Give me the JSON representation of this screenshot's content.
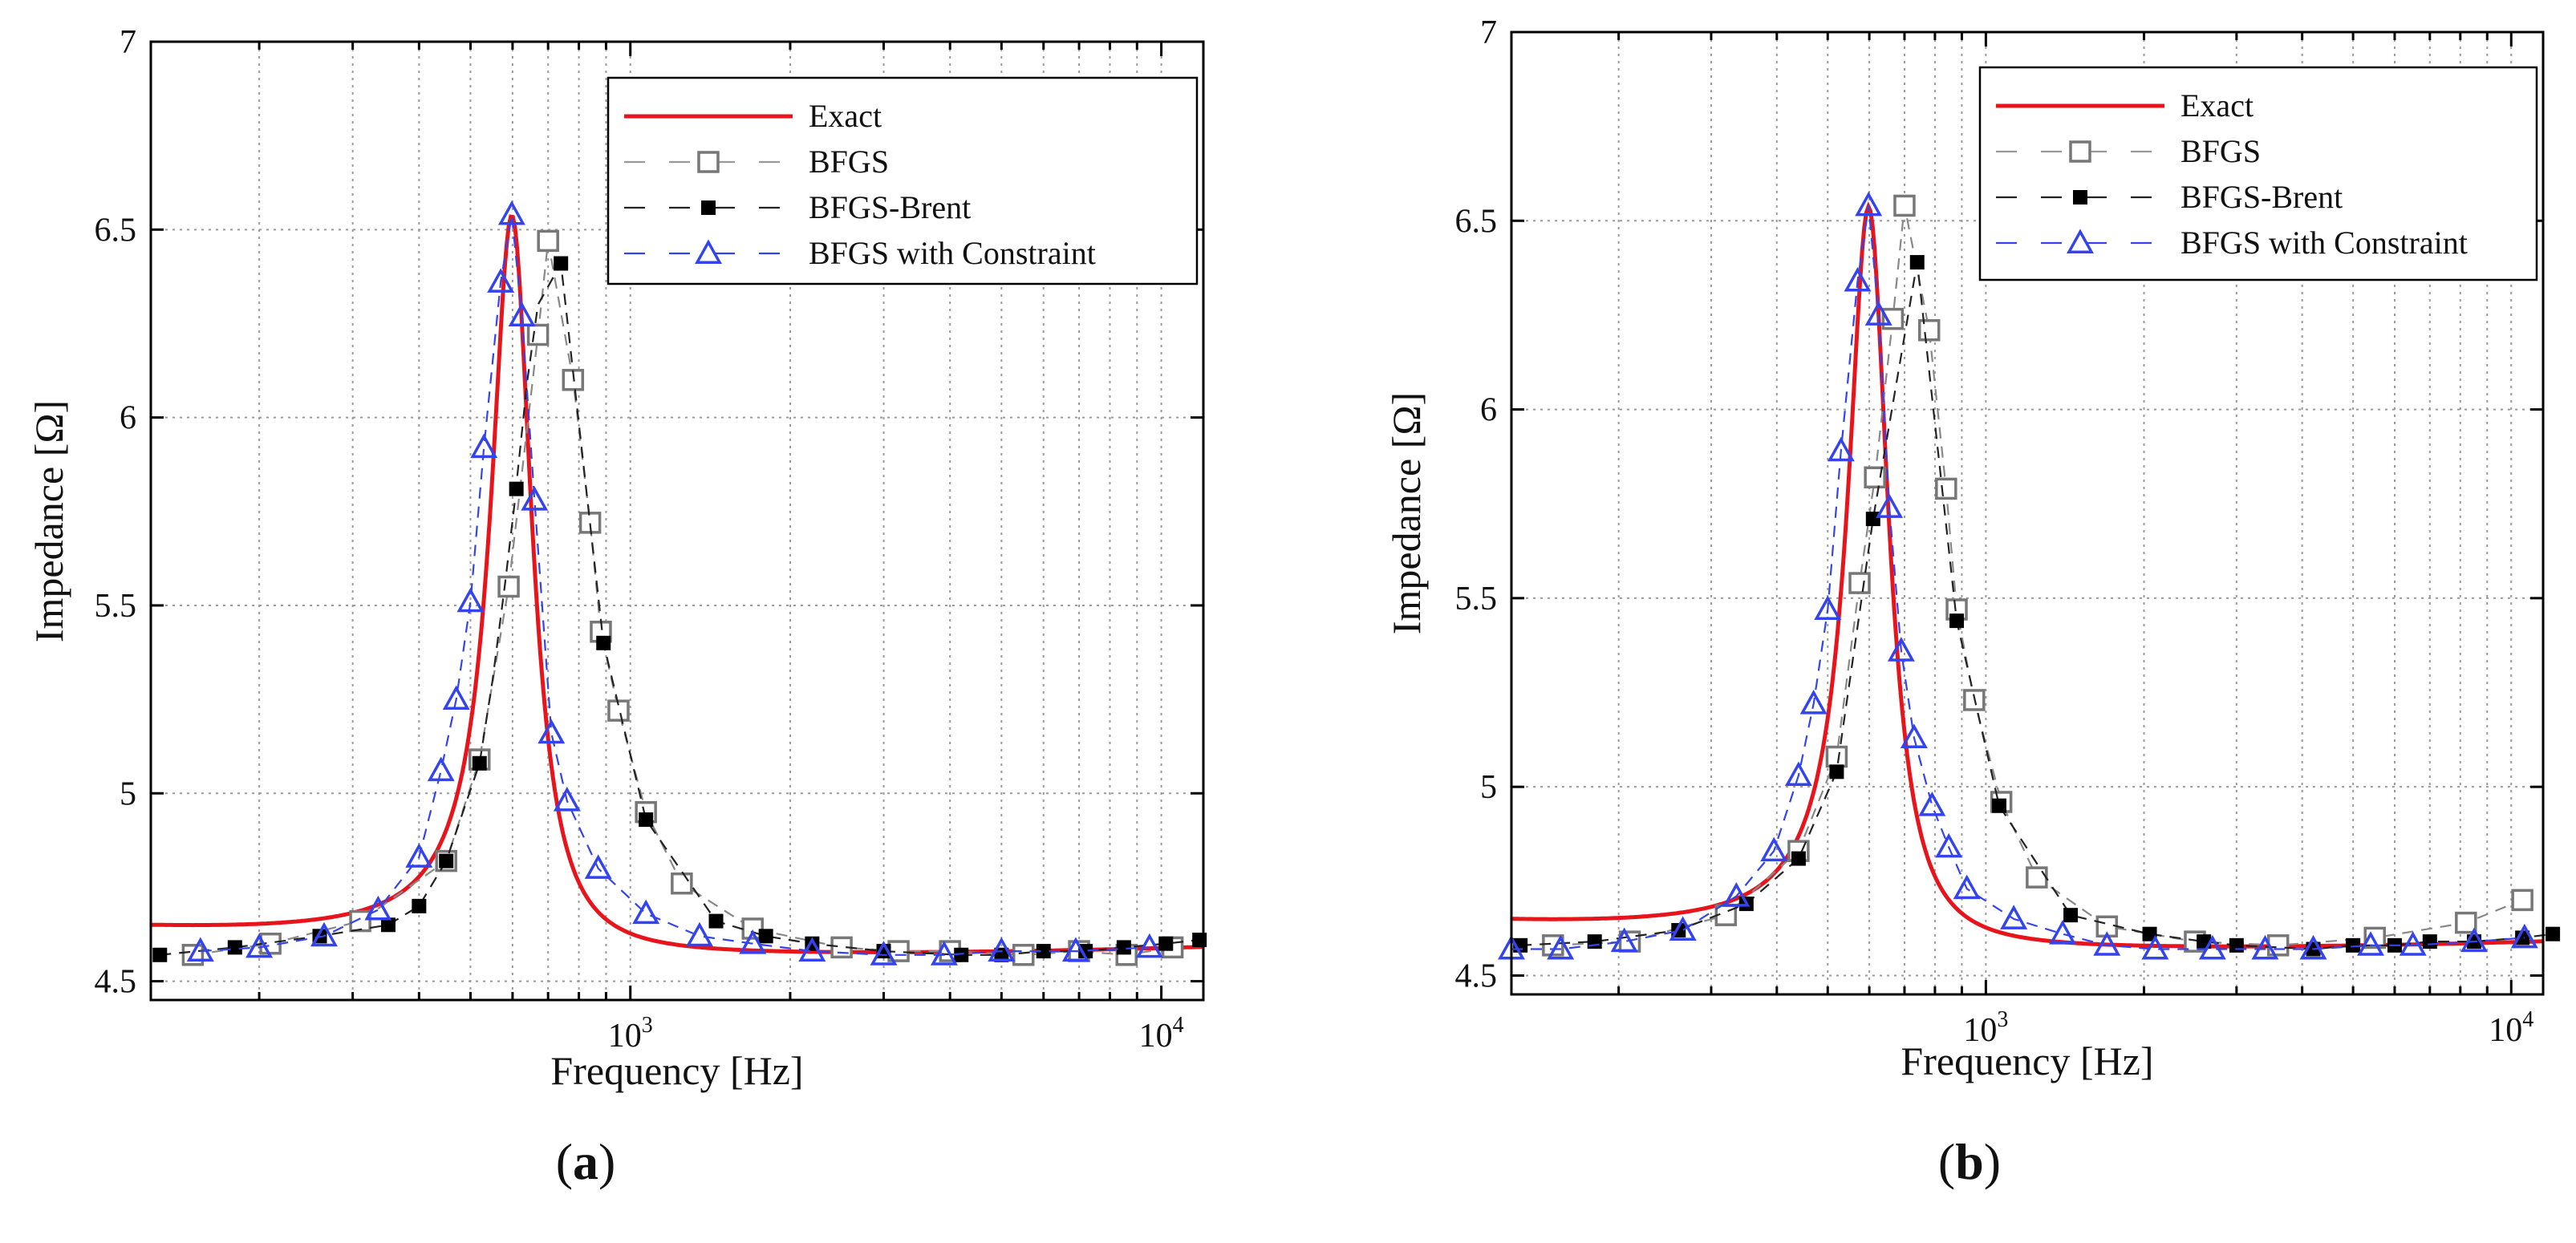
{
  "chart_data": [
    {
      "type": "line",
      "panel_label": "(a)",
      "panel_label_parts": {
        "open": "(",
        "letter": "a",
        "close": ")"
      },
      "xlabel": "Frequency [Hz]",
      "ylabel": "Impedance [Ω]",
      "xscale": "log",
      "xlim": [
        125,
        12000
      ],
      "ylim": [
        4.45,
        7.0
      ],
      "yticks": [
        4.5,
        5,
        5.5,
        6,
        6.5,
        7
      ],
      "ytick_labels": [
        "4.5",
        "5",
        "5.5",
        "6",
        "6.5",
        "7"
      ],
      "xtick_labels": [
        {
          "base": "10",
          "exp": "3"
        },
        {
          "base": "10",
          "exp": "4"
        }
      ],
      "grid": true,
      "legend_position": "top-right",
      "colors": {
        "exact": "#e8141c",
        "bfgs": "#808080",
        "brent": "#000000",
        "constraint": "#3344ee"
      },
      "series": [
        {
          "name": "Exact",
          "style": "line",
          "peak_freq": 598,
          "peak_value": 6.53,
          "base_value": 4.575,
          "half_width": 65
        },
        {
          "name": "BFGS",
          "style": "dashed-open-square",
          "x": [
            150,
            210,
            310,
            450,
            520,
            590,
            670,
            700,
            780,
            840,
            880,
            950,
            1070,
            1250,
            1700,
            2500,
            3200,
            4000,
            5500,
            7000,
            8600,
            10500
          ],
          "y": [
            4.57,
            4.6,
            4.66,
            4.82,
            5.09,
            5.55,
            6.22,
            6.47,
            6.1,
            5.72,
            5.43,
            5.22,
            4.95,
            4.76,
            4.64,
            4.59,
            4.58,
            4.58,
            4.57,
            4.58,
            4.57,
            4.59
          ]
        },
        {
          "name": "BFGS-Brent",
          "style": "dashed-filled-square",
          "x": [
            130,
            180,
            260,
            350,
            400,
            450,
            520,
            610,
            740,
            890,
            1070,
            1450,
            1800,
            2200,
            3000,
            4200,
            5000,
            6000,
            7200,
            8500,
            10200,
            11800
          ],
          "y": [
            4.57,
            4.59,
            4.62,
            4.65,
            4.7,
            4.82,
            5.08,
            5.81,
            6.41,
            5.4,
            4.93,
            4.66,
            4.62,
            4.6,
            4.58,
            4.57,
            4.57,
            4.58,
            4.58,
            4.59,
            4.6,
            4.61
          ],
          "mid_x": [
            550,
            580,
            610,
            640,
            670
          ],
          "mid_y": [
            5.3,
            5.55,
            5.82,
            6.1,
            6.3
          ]
        },
        {
          "name": "BFGS with Constraint",
          "style": "dashed-open-triangle",
          "x": [
            155,
            200,
            265,
            335,
            400,
            440,
            470,
            500,
            530,
            570,
            598,
            625,
            660,
            710,
            760,
            870,
            1070,
            1350,
            1700,
            2200,
            3000,
            3900,
            5000,
            6900,
            9500
          ],
          "y": [
            4.58,
            4.59,
            4.62,
            4.69,
            4.83,
            5.06,
            5.25,
            5.51,
            5.92,
            6.36,
            6.54,
            6.27,
            5.78,
            5.16,
            4.98,
            4.8,
            4.68,
            4.62,
            4.6,
            4.58,
            4.57,
            4.57,
            4.58,
            4.58,
            4.59
          ]
        }
      ]
    },
    {
      "type": "line",
      "panel_label": "(b)",
      "panel_label_parts": {
        "open": "(",
        "letter": "b",
        "close": ")"
      },
      "xlabel": "Frequency [Hz]",
      "ylabel": "Impedance [Ω]",
      "xscale": "log",
      "xlim": [
        125,
        11500
      ],
      "ylim": [
        4.45,
        7.0
      ],
      "yticks": [
        4.5,
        5,
        5.5,
        6,
        6.5,
        7
      ],
      "ytick_labels": [
        "4.5",
        "5",
        "5.5",
        "6",
        "6.5",
        "7"
      ],
      "xtick_labels": [
        {
          "base": "10",
          "exp": "3"
        },
        {
          "base": "10",
          "exp": "4"
        }
      ],
      "grid": true,
      "legend_position": "top-right",
      "colors": {
        "exact": "#e8141c",
        "bfgs": "#808080",
        "brent": "#000000",
        "constraint": "#3344ee"
      },
      "series": [
        {
          "name": "Exact",
          "style": "line",
          "peak_freq": 598,
          "peak_value": 6.53,
          "base_value": 4.575,
          "half_width": 65
        },
        {
          "name": "BFGS",
          "style": "dashed-open-square",
          "x": [
            150,
            210,
            320,
            440,
            520,
            575,
            615,
            665,
            700,
            780,
            840,
            880,
            950,
            1070,
            1250,
            1700,
            2500,
            3600,
            5500,
            8200,
            10500
          ],
          "y": [
            4.58,
            4.59,
            4.66,
            4.83,
            5.08,
            5.54,
            5.82,
            6.24,
            6.54,
            6.21,
            5.79,
            5.47,
            5.23,
            4.96,
            4.76,
            4.63,
            4.59,
            4.58,
            4.6,
            4.64,
            4.7
          ],
          "tail_color": "#b0b0b0"
        },
        {
          "name": "BFGS-Brent",
          "style": "dashed-filled-square",
          "x": [
            130,
            180,
            260,
            350,
            440,
            520,
            610,
            740,
            880,
            1060,
            1450,
            2050,
            2600,
            3000,
            4200,
            5000,
            6000,
            7000,
            8500,
            10500,
            12000
          ],
          "y": [
            4.58,
            4.59,
            4.62,
            4.69,
            4.81,
            5.04,
            5.71,
            6.39,
            5.44,
            4.95,
            4.66,
            4.61,
            4.59,
            4.58,
            4.57,
            4.58,
            4.58,
            4.59,
            4.59,
            4.6,
            4.61
          ]
        },
        {
          "name": "BFGS with Constraint",
          "style": "dashed-open-triangle",
          "x": [
            125,
            155,
            205,
            265,
            335,
            395,
            440,
            470,
            500,
            530,
            570,
            598,
            625,
            655,
            690,
            730,
            790,
            850,
            920,
            1130,
            1400,
            1700,
            2100,
            2700,
            3400,
            4200,
            5400,
            6500,
            8500,
            10600
          ],
          "y": [
            4.57,
            4.57,
            4.59,
            4.62,
            4.71,
            4.83,
            5.03,
            5.22,
            5.47,
            5.89,
            6.34,
            6.54,
            6.25,
            5.74,
            5.36,
            5.13,
            4.95,
            4.84,
            4.73,
            4.65,
            4.61,
            4.58,
            4.57,
            4.57,
            4.57,
            4.57,
            4.58,
            4.58,
            4.59,
            4.6
          ]
        }
      ]
    }
  ]
}
